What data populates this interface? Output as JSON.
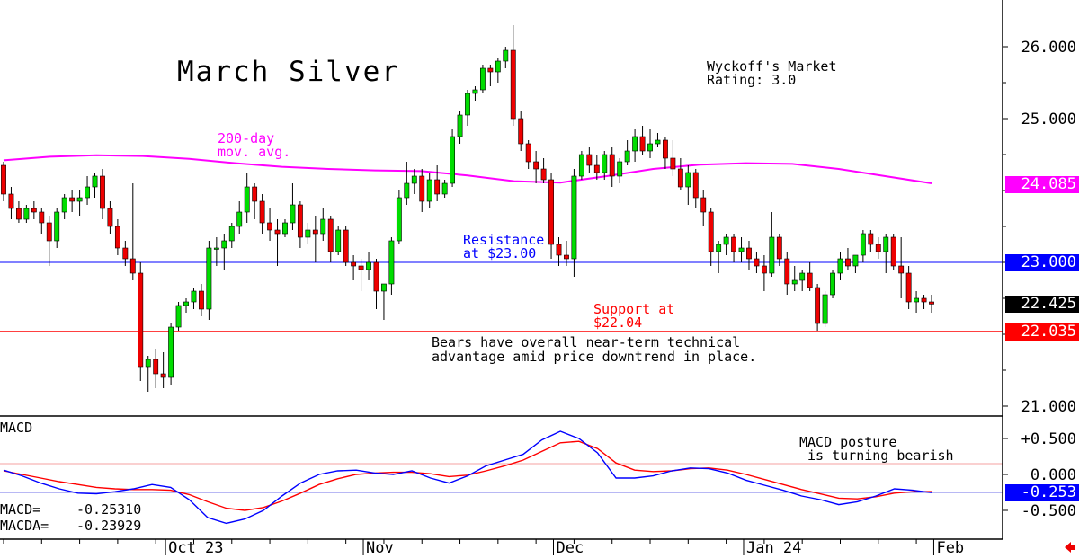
{
  "chart_data": [
    {
      "type": "candlestick",
      "title": "March Silver",
      "y_ticks": [
        "26.000",
        "25.000",
        "21.000"
      ],
      "ylim": [
        20.95,
        26.3
      ],
      "x_ticks": [
        {
          "label": "Oct 23",
          "index": 22
        },
        {
          "label": "Nov",
          "index": 48
        },
        {
          "label": "Dec",
          "index": 73
        },
        {
          "label": "Jan 24",
          "index": 98
        },
        {
          "label": "Feb",
          "index": 123
        }
      ],
      "candles": [
        [
          24.35,
          24.4,
          23.85,
          23.95
        ],
        [
          23.95,
          24.05,
          23.6,
          23.75
        ],
        [
          23.75,
          23.85,
          23.55,
          23.6
        ],
        [
          23.6,
          23.8,
          23.55,
          23.75
        ],
        [
          23.75,
          23.85,
          23.6,
          23.7
        ],
        [
          23.7,
          23.75,
          23.4,
          23.55
        ],
        [
          23.55,
          23.65,
          22.95,
          23.3
        ],
        [
          23.3,
          23.75,
          23.2,
          23.7
        ],
        [
          23.7,
          23.95,
          23.6,
          23.9
        ],
        [
          23.9,
          24.0,
          23.7,
          23.85
        ],
        [
          23.85,
          24.0,
          23.65,
          23.9
        ],
        [
          23.9,
          24.2,
          23.8,
          24.05
        ],
        [
          24.05,
          24.25,
          23.9,
          24.2
        ],
        [
          24.2,
          24.3,
          23.6,
          23.75
        ],
        [
          23.75,
          23.85,
          23.4,
          23.5
        ],
        [
          23.5,
          23.6,
          23.1,
          23.2
        ],
        [
          23.2,
          23.3,
          22.95,
          23.05
        ],
        [
          23.05,
          24.1,
          22.75,
          22.85
        ],
        [
          22.85,
          23.0,
          21.35,
          21.55
        ],
        [
          21.55,
          21.7,
          21.2,
          21.65
        ],
        [
          21.65,
          21.8,
          21.25,
          21.45
        ],
        [
          21.45,
          21.75,
          21.25,
          21.4
        ],
        [
          21.4,
          22.15,
          21.3,
          22.1
        ],
        [
          22.1,
          22.45,
          22.05,
          22.4
        ],
        [
          22.4,
          22.5,
          22.3,
          22.45
        ],
        [
          22.45,
          22.65,
          22.35,
          22.6
        ],
        [
          22.6,
          22.7,
          22.25,
          22.35
        ],
        [
          22.35,
          23.3,
          22.2,
          23.2
        ],
        [
          23.2,
          23.35,
          22.95,
          23.2
        ],
        [
          23.2,
          23.4,
          22.9,
          23.3
        ],
        [
          23.3,
          23.55,
          23.2,
          23.5
        ],
        [
          23.5,
          23.85,
          23.4,
          23.7
        ],
        [
          23.7,
          24.25,
          23.55,
          24.05
        ],
        [
          24.05,
          24.1,
          23.6,
          23.85
        ],
        [
          23.85,
          23.95,
          23.4,
          23.55
        ],
        [
          23.55,
          23.75,
          23.3,
          23.45
        ],
        [
          23.45,
          23.6,
          22.95,
          23.4
        ],
        [
          23.4,
          23.6,
          23.35,
          23.55
        ],
        [
          23.55,
          24.1,
          23.45,
          23.8
        ],
        [
          23.8,
          23.85,
          23.2,
          23.35
        ],
        [
          23.35,
          23.55,
          23.25,
          23.45
        ],
        [
          23.45,
          23.65,
          23.0,
          23.4
        ],
        [
          23.4,
          23.75,
          23.3,
          23.6
        ],
        [
          23.6,
          23.65,
          23.0,
          23.15
        ],
        [
          23.15,
          23.5,
          23.1,
          23.45
        ],
        [
          23.45,
          23.5,
          22.95,
          23.0
        ],
        [
          23.0,
          23.1,
          22.75,
          22.95
        ],
        [
          22.95,
          23.05,
          22.6,
          22.9
        ],
        [
          22.9,
          23.15,
          22.75,
          23.0
        ],
        [
          23.0,
          23.05,
          22.35,
          22.6
        ],
        [
          22.6,
          22.65,
          22.2,
          22.7
        ],
        [
          22.7,
          23.35,
          22.55,
          23.3
        ],
        [
          23.3,
          24.0,
          23.25,
          23.9
        ],
        [
          23.9,
          24.4,
          23.8,
          24.1
        ],
        [
          24.1,
          24.3,
          23.95,
          24.2
        ],
        [
          24.2,
          24.3,
          23.7,
          23.85
        ],
        [
          23.85,
          24.25,
          23.75,
          24.15
        ],
        [
          24.15,
          24.35,
          23.85,
          23.95
        ],
        [
          23.95,
          24.15,
          23.9,
          24.1
        ],
        [
          24.1,
          24.85,
          24.05,
          24.75
        ],
        [
          24.75,
          25.1,
          24.65,
          25.05
        ],
        [
          25.05,
          25.4,
          24.9,
          25.35
        ],
        [
          25.35,
          25.45,
          25.25,
          25.4
        ],
        [
          25.4,
          25.75,
          25.35,
          25.7
        ],
        [
          25.7,
          25.75,
          25.45,
          25.65
        ],
        [
          25.65,
          25.85,
          25.5,
          25.8
        ],
        [
          25.8,
          26.0,
          25.7,
          25.95
        ],
        [
          25.95,
          26.3,
          24.9,
          25.0
        ],
        [
          25.0,
          25.1,
          24.55,
          24.65
        ],
        [
          24.65,
          24.7,
          24.3,
          24.4
        ],
        [
          24.4,
          24.55,
          24.1,
          24.3
        ],
        [
          24.3,
          24.45,
          24.1,
          24.15
        ],
        [
          24.15,
          24.25,
          23.05,
          23.25
        ],
        [
          23.25,
          23.35,
          22.95,
          23.1
        ],
        [
          23.1,
          23.3,
          22.95,
          23.05
        ],
        [
          23.05,
          24.3,
          22.8,
          24.2
        ],
        [
          24.2,
          24.55,
          24.15,
          24.5
        ],
        [
          24.5,
          24.6,
          24.25,
          24.35
        ],
        [
          24.35,
          24.5,
          24.15,
          24.25
        ],
        [
          24.25,
          24.55,
          24.15,
          24.5
        ],
        [
          24.5,
          24.6,
          24.05,
          24.2
        ],
        [
          24.2,
          24.45,
          24.1,
          24.4
        ],
        [
          24.4,
          24.7,
          24.35,
          24.55
        ],
        [
          24.55,
          24.85,
          24.4,
          24.75
        ],
        [
          24.75,
          24.9,
          24.5,
          24.55
        ],
        [
          24.55,
          24.85,
          24.45,
          24.65
        ],
        [
          24.65,
          24.8,
          24.6,
          24.7
        ],
        [
          24.7,
          24.75,
          24.3,
          24.45
        ],
        [
          24.45,
          24.7,
          24.2,
          24.3
        ],
        [
          24.3,
          24.45,
          24.0,
          24.05
        ],
        [
          24.05,
          24.35,
          23.8,
          24.25
        ],
        [
          24.25,
          24.3,
          23.75,
          23.9
        ],
        [
          23.9,
          24.0,
          23.5,
          23.7
        ],
        [
          23.7,
          23.75,
          22.95,
          23.15
        ],
        [
          23.15,
          23.3,
          22.85,
          23.25
        ],
        [
          23.25,
          23.4,
          23.1,
          23.35
        ],
        [
          23.35,
          23.4,
          23.0,
          23.15
        ],
        [
          23.15,
          23.35,
          23.0,
          23.2
        ],
        [
          23.2,
          23.3,
          22.9,
          23.05
        ],
        [
          23.05,
          23.15,
          22.85,
          22.95
        ],
        [
          22.95,
          23.1,
          22.6,
          22.85
        ],
        [
          22.85,
          23.7,
          22.8,
          23.35
        ],
        [
          23.35,
          23.4,
          22.95,
          23.05
        ],
        [
          23.05,
          23.15,
          22.55,
          22.7
        ],
        [
          22.7,
          22.95,
          22.6,
          22.75
        ],
        [
          22.75,
          22.9,
          22.6,
          22.85
        ],
        [
          22.85,
          23.0,
          22.6,
          22.65
        ],
        [
          22.65,
          22.7,
          22.05,
          22.15
        ],
        [
          22.15,
          22.6,
          22.1,
          22.55
        ],
        [
          22.55,
          22.9,
          22.5,
          22.85
        ],
        [
          22.85,
          23.15,
          22.75,
          23.05
        ],
        [
          23.05,
          23.2,
          22.9,
          22.95
        ],
        [
          22.95,
          23.1,
          22.85,
          23.1
        ],
        [
          23.1,
          23.45,
          23.0,
          23.4
        ],
        [
          23.4,
          23.45,
          23.15,
          23.25
        ],
        [
          23.25,
          23.35,
          23.05,
          23.15
        ],
        [
          23.15,
          23.4,
          22.85,
          23.35
        ],
        [
          23.35,
          23.4,
          22.9,
          22.95
        ],
        [
          22.95,
          23.35,
          22.5,
          22.85
        ],
        [
          22.85,
          22.95,
          22.35,
          22.45
        ],
        [
          22.45,
          22.6,
          22.3,
          22.5
        ],
        [
          22.5,
          22.55,
          22.35,
          22.45
        ],
        [
          22.45,
          22.55,
          22.3,
          22.42
        ]
      ],
      "ma200": [
        24.42,
        24.47,
        24.49,
        24.48,
        24.44,
        24.38,
        24.33,
        24.3,
        24.28,
        24.27,
        24.21,
        24.13,
        24.11,
        24.2,
        24.3,
        24.36,
        24.38,
        24.37,
        24.3,
        24.2,
        24.1
      ],
      "ma200_label": [
        "200-day",
        "mov. avg."
      ],
      "resistance": {
        "value": 23.0,
        "label": [
          "Resistance",
          "at $23.00"
        ]
      },
      "support": {
        "value": 22.04,
        "label": [
          "Support at",
          "$22.04"
        ]
      },
      "rating": [
        "Wyckoff's Market",
        "Rating: 3.0"
      ],
      "commentary": [
        "Bears have overall near-term technical",
        "advantage amid price downtrend in place."
      ],
      "price_tags": [
        {
          "text": "24.085",
          "value": 24.085,
          "bg": "#ff00ff",
          "fg": "#ffffff"
        },
        {
          "text": "23.000",
          "value": 23.0,
          "bg": "#0000ff",
          "fg": "#ffffff"
        },
        {
          "text": "22.425",
          "value": 22.425,
          "bg": "#000000",
          "fg": "#ffffff"
        },
        {
          "text": "22.035",
          "value": 22.035,
          "bg": "#ff0000",
          "fg": "#ffffff"
        }
      ]
    },
    {
      "type": "line",
      "title": "MACD",
      "y_ticks": [
        "+0.500",
        "0.000",
        "-0.500"
      ],
      "ylim": [
        -0.58,
        0.62
      ],
      "macd": [
        0.06,
        -0.02,
        -0.12,
        -0.2,
        -0.26,
        -0.27,
        -0.24,
        -0.2,
        -0.14,
        -0.18,
        -0.35,
        -0.6,
        -0.68,
        -0.62,
        -0.5,
        -0.3,
        -0.12,
        0.0,
        0.05,
        0.06,
        0.02,
        0.0,
        0.05,
        -0.05,
        -0.12,
        -0.02,
        0.12,
        0.2,
        0.28,
        0.48,
        0.6,
        0.5,
        0.3,
        -0.05,
        -0.05,
        -0.02,
        0.05,
        0.09,
        0.08,
        0.02,
        -0.08,
        -0.15,
        -0.22,
        -0.3,
        -0.35,
        -0.42,
        -0.38,
        -0.3,
        -0.2,
        -0.22,
        -0.253
      ],
      "macda": [
        0.05,
        0.0,
        -0.05,
        -0.1,
        -0.14,
        -0.18,
        -0.2,
        -0.21,
        -0.21,
        -0.22,
        -0.28,
        -0.38,
        -0.47,
        -0.5,
        -0.46,
        -0.37,
        -0.26,
        -0.14,
        -0.06,
        0.0,
        0.02,
        0.03,
        0.03,
        0.01,
        -0.03,
        -0.01,
        0.05,
        0.12,
        0.2,
        0.32,
        0.44,
        0.46,
        0.36,
        0.16,
        0.06,
        0.04,
        0.05,
        0.08,
        0.09,
        0.06,
        0.0,
        -0.07,
        -0.14,
        -0.21,
        -0.27,
        -0.33,
        -0.34,
        -0.31,
        -0.26,
        -0.24,
        -0.239
      ],
      "macd_color": "#0000ff",
      "macda_color": "#ff0000",
      "annotation": [
        "MACD posture",
        " is turning bearish"
      ],
      "readout": [
        {
          "label": "MACD=",
          "value": "-0.25310"
        },
        {
          "label": "MACDA=",
          "value": "-0.23929"
        }
      ],
      "tag": {
        "text": "-0.253",
        "value": -0.253,
        "bg": "#0000ff",
        "fg": "#ffffff"
      }
    }
  ],
  "colors": {
    "up": "#00dd00",
    "down": "#ee0000",
    "ma": "#ff00ff",
    "resistance": "#0000ff",
    "support": "#ff0000",
    "annotation_red": "#ff0000",
    "annotation_blue": "#0000ff",
    "annotation_magenta": "#ff00ff"
  },
  "nav_icon": "left-arrow-icon"
}
